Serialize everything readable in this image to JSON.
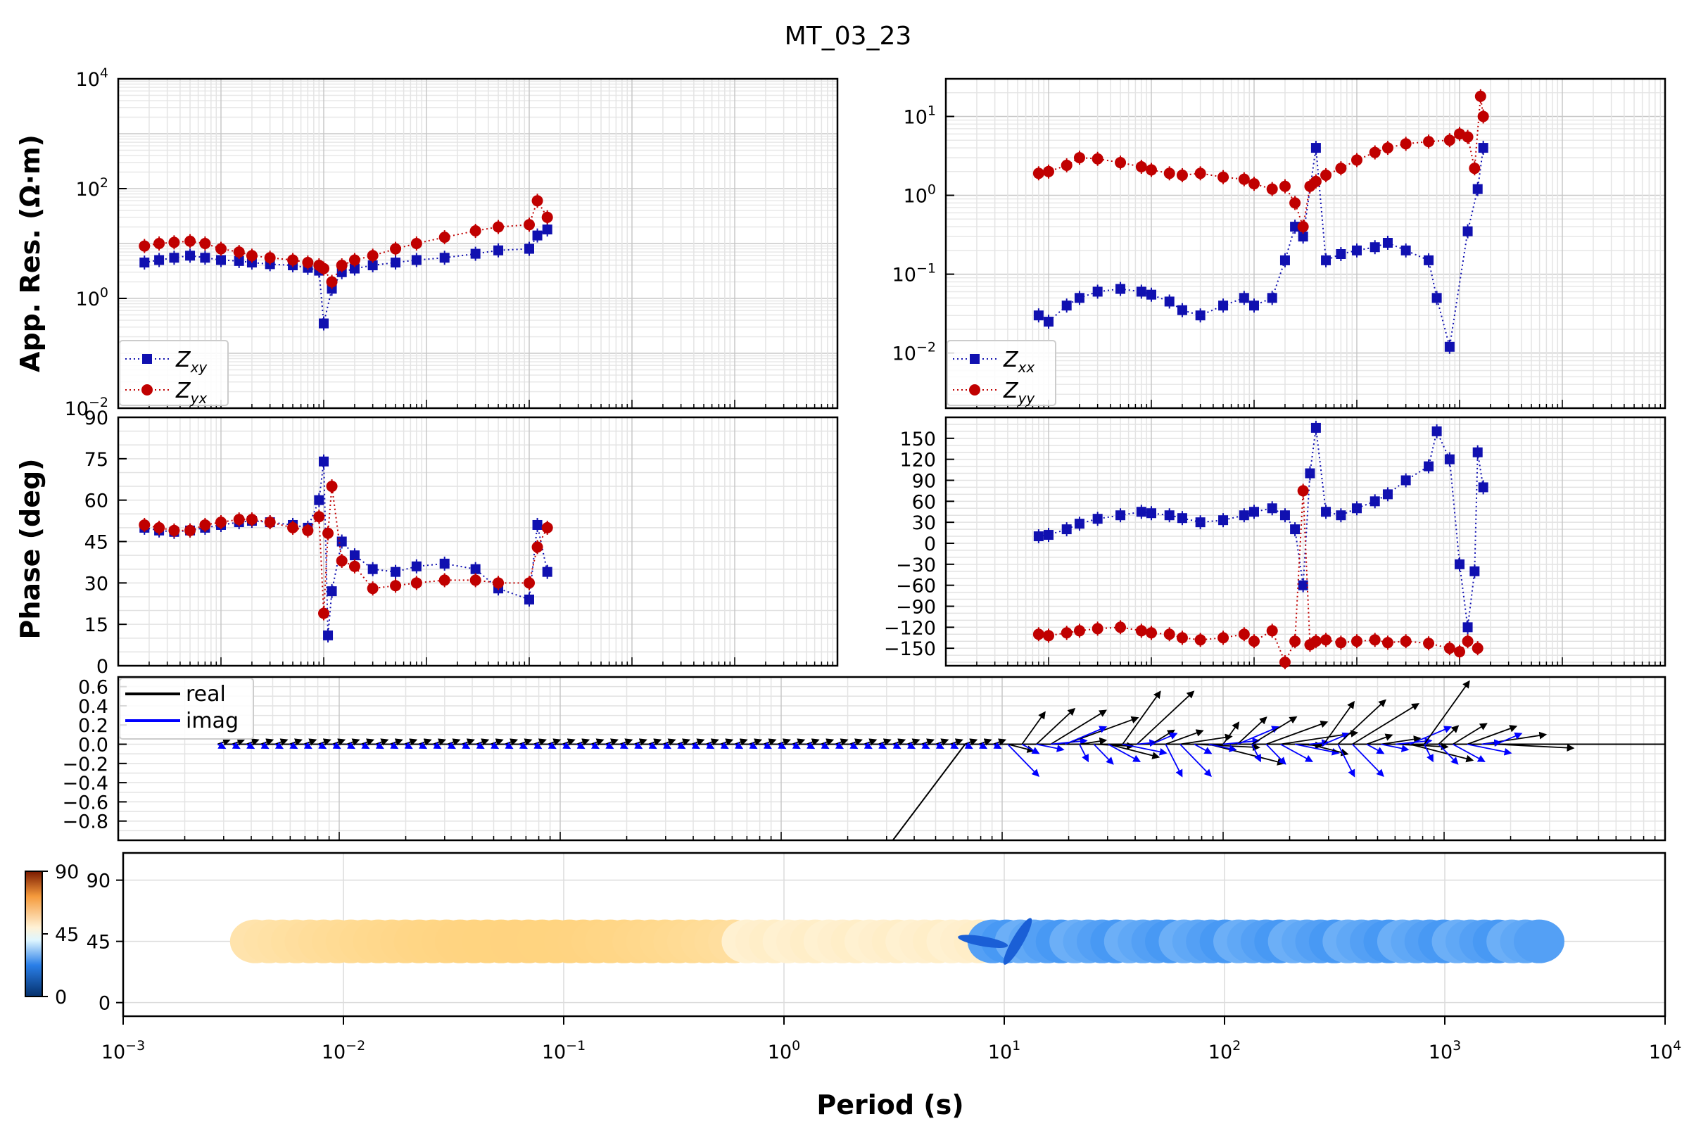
{
  "title": "MT_03_23",
  "colors": {
    "xy": "#1010b0",
    "yx": "#c00000",
    "tip_real": "#000000",
    "tip_imag": "#0000ff",
    "grid": "#d0d0d0"
  },
  "chart_data": {
    "type": "scatter",
    "xlabel": "Period (s)",
    "xscale": "log",
    "xlim": [
      0.001,
      10000
    ],
    "x_ticks": [
      "10",
      "10",
      "10",
      "10",
      "10",
      "10",
      "10",
      "10"
    ],
    "x_tick_exps": [
      "−3",
      "−2",
      "−1",
      "0",
      "1",
      "2",
      "3",
      "4"
    ],
    "ylabel_resistivity": "App. Res. (Ω·m)",
    "ylabel_phase": "Phase (deg)",
    "resistivity_main": {
      "ylim": [
        0.01,
        10000
      ],
      "yscale": "log",
      "y_ticks": [
        "10",
        "10",
        "10",
        "10"
      ],
      "y_tick_exps": [
        "−2",
        "0",
        "2",
        "4"
      ],
      "legend": [
        "Z",
        "Z"
      ],
      "legend_subs": [
        "xy",
        "yx"
      ],
      "series": [
        {
          "key": "xy",
          "points": [
            [
              0.0018,
              4.5
            ],
            [
              0.0025,
              5
            ],
            [
              0.0035,
              5.5
            ],
            [
              0.005,
              6
            ],
            [
              0.007,
              5.5
            ],
            [
              0.01,
              5
            ],
            [
              0.015,
              4.8
            ],
            [
              0.02,
              4.5
            ],
            [
              0.03,
              4.2
            ],
            [
              0.05,
              4
            ],
            [
              0.07,
              3.6
            ],
            [
              0.09,
              3.2
            ],
            [
              0.1,
              0.35
            ],
            [
              0.12,
              1.5
            ],
            [
              0.15,
              3
            ],
            [
              0.2,
              3.5
            ],
            [
              0.3,
              4
            ],
            [
              0.5,
              4.5
            ],
            [
              0.8,
              5
            ],
            [
              1.5,
              5.5
            ],
            [
              3,
              6.5
            ],
            [
              5,
              7.5
            ],
            [
              10,
              8
            ],
            [
              12,
              14
            ],
            [
              15,
              18
            ]
          ]
        },
        {
          "key": "yx",
          "points": [
            [
              0.0018,
              9
            ],
            [
              0.0025,
              10
            ],
            [
              0.0035,
              10.5
            ],
            [
              0.005,
              11
            ],
            [
              0.007,
              10
            ],
            [
              0.01,
              8
            ],
            [
              0.015,
              7
            ],
            [
              0.02,
              6
            ],
            [
              0.03,
              5.5
            ],
            [
              0.05,
              5
            ],
            [
              0.07,
              4.5
            ],
            [
              0.09,
              4
            ],
            [
              0.1,
              3.5
            ],
            [
              0.12,
              2
            ],
            [
              0.15,
              4
            ],
            [
              0.2,
              5
            ],
            [
              0.3,
              6
            ],
            [
              0.5,
              8
            ],
            [
              0.8,
              10
            ],
            [
              1.5,
              13
            ],
            [
              3,
              17
            ],
            [
              5,
              20
            ],
            [
              10,
              22
            ],
            [
              12,
              60
            ],
            [
              15,
              30
            ]
          ]
        }
      ]
    },
    "resistivity_diag": {
      "ylim": [
        0.002,
        30
      ],
      "yscale": "log",
      "y_ticks": [
        "10",
        "10",
        "10",
        "10"
      ],
      "y_tick_exps": [
        "1",
        "0",
        "−1",
        "−2"
      ],
      "legend": [
        "Z",
        "Z"
      ],
      "legend_subs": [
        "xx",
        "yy"
      ],
      "series": [
        {
          "key": "xx",
          "points": [
            [
              0.008,
              0.03
            ],
            [
              0.01,
              0.025
            ],
            [
              0.015,
              0.04
            ],
            [
              0.02,
              0.05
            ],
            [
              0.03,
              0.06
            ],
            [
              0.05,
              0.065
            ],
            [
              0.08,
              0.06
            ],
            [
              0.1,
              0.055
            ],
            [
              0.15,
              0.045
            ],
            [
              0.2,
              0.035
            ],
            [
              0.3,
              0.03
            ],
            [
              0.5,
              0.04
            ],
            [
              0.8,
              0.05
            ],
            [
              1,
              0.04
            ],
            [
              1.5,
              0.05
            ],
            [
              2,
              0.15
            ],
            [
              2.5,
              0.4
            ],
            [
              3,
              0.3
            ],
            [
              4,
              4
            ],
            [
              5,
              0.15
            ],
            [
              7,
              0.18
            ],
            [
              10,
              0.2
            ],
            [
              15,
              0.22
            ],
            [
              20,
              0.25
            ],
            [
              30,
              0.2
            ],
            [
              50,
              0.15
            ],
            [
              60,
              0.05
            ],
            [
              80,
              0.012
            ],
            [
              120,
              0.35
            ],
            [
              150,
              1.2
            ],
            [
              170,
              4
            ]
          ]
        },
        {
          "key": "yy",
          "points": [
            [
              0.008,
              1.9
            ],
            [
              0.01,
              2
            ],
            [
              0.015,
              2.4
            ],
            [
              0.02,
              3
            ],
            [
              0.03,
              2.9
            ],
            [
              0.05,
              2.6
            ],
            [
              0.08,
              2.3
            ],
            [
              0.1,
              2.1
            ],
            [
              0.15,
              1.9
            ],
            [
              0.2,
              1.8
            ],
            [
              0.3,
              1.9
            ],
            [
              0.5,
              1.7
            ],
            [
              0.8,
              1.6
            ],
            [
              1,
              1.4
            ],
            [
              1.5,
              1.2
            ],
            [
              2,
              1.3
            ],
            [
              2.5,
              0.8
            ],
            [
              3,
              0.4
            ],
            [
              3.5,
              1.3
            ],
            [
              4,
              1.5
            ],
            [
              5,
              1.8
            ],
            [
              7,
              2.2
            ],
            [
              10,
              2.8
            ],
            [
              15,
              3.5
            ],
            [
              20,
              4
            ],
            [
              30,
              4.5
            ],
            [
              50,
              4.8
            ],
            [
              80,
              5
            ],
            [
              100,
              6
            ],
            [
              120,
              5.5
            ],
            [
              140,
              2.2
            ],
            [
              160,
              18
            ],
            [
              170,
              10
            ]
          ]
        }
      ]
    },
    "phase_main": {
      "ylim": [
        0,
        90
      ],
      "y_ticks": [
        "0",
        "15",
        "30",
        "45",
        "60",
        "75",
        "90"
      ],
      "series": [
        {
          "key": "xy",
          "points": [
            [
              0.0018,
              50
            ],
            [
              0.0025,
              49
            ],
            [
              0.0035,
              48.5
            ],
            [
              0.005,
              49
            ],
            [
              0.007,
              50
            ],
            [
              0.01,
              51
            ],
            [
              0.015,
              52
            ],
            [
              0.02,
              52.5
            ],
            [
              0.03,
              52
            ],
            [
              0.05,
              51
            ],
            [
              0.07,
              50
            ],
            [
              0.09,
              60
            ],
            [
              0.1,
              74
            ],
            [
              0.11,
              11
            ],
            [
              0.12,
              27
            ],
            [
              0.15,
              45
            ],
            [
              0.2,
              40
            ],
            [
              0.3,
              35
            ],
            [
              0.5,
              34
            ],
            [
              0.8,
              36
            ],
            [
              1.5,
              37
            ],
            [
              3,
              35
            ],
            [
              5,
              28
            ],
            [
              10,
              24
            ],
            [
              12,
              51
            ],
            [
              15,
              34
            ]
          ]
        },
        {
          "key": "yx",
          "points": [
            [
              0.0018,
              51
            ],
            [
              0.0025,
              50
            ],
            [
              0.0035,
              49
            ],
            [
              0.005,
              49
            ],
            [
              0.007,
              51
            ],
            [
              0.01,
              52
            ],
            [
              0.015,
              53
            ],
            [
              0.02,
              53
            ],
            [
              0.03,
              52
            ],
            [
              0.05,
              50
            ],
            [
              0.07,
              49
            ],
            [
              0.09,
              54
            ],
            [
              0.1,
              19
            ],
            [
              0.11,
              48
            ],
            [
              0.12,
              65
            ],
            [
              0.15,
              38
            ],
            [
              0.2,
              36
            ],
            [
              0.3,
              28
            ],
            [
              0.5,
              29
            ],
            [
              0.8,
              30
            ],
            [
              1.5,
              31
            ],
            [
              3,
              31
            ],
            [
              5,
              30
            ],
            [
              10,
              30
            ],
            [
              12,
              43
            ],
            [
              15,
              50
            ]
          ]
        }
      ]
    },
    "phase_diag": {
      "ylim": [
        -175,
        180
      ],
      "y_ticks": [
        "150",
        "120",
        "90",
        "60",
        "30",
        "0",
        "−30",
        "−60",
        "−90",
        "−120",
        "−150"
      ],
      "series": [
        {
          "key": "xx",
          "points": [
            [
              0.008,
              10
            ],
            [
              0.01,
              12
            ],
            [
              0.015,
              20
            ],
            [
              0.02,
              28
            ],
            [
              0.03,
              35
            ],
            [
              0.05,
              40
            ],
            [
              0.08,
              45
            ],
            [
              0.1,
              43
            ],
            [
              0.15,
              40
            ],
            [
              0.2,
              36
            ],
            [
              0.3,
              30
            ],
            [
              0.5,
              33
            ],
            [
              0.8,
              40
            ],
            [
              1,
              45
            ],
            [
              1.5,
              50
            ],
            [
              2,
              40
            ],
            [
              2.5,
              20
            ],
            [
              3,
              -60
            ],
            [
              3.5,
              100
            ],
            [
              4,
              165
            ],
            [
              5,
              45
            ],
            [
              7,
              40
            ],
            [
              10,
              50
            ],
            [
              15,
              60
            ],
            [
              20,
              70
            ],
            [
              30,
              90
            ],
            [
              50,
              110
            ],
            [
              60,
              160
            ],
            [
              80,
              120
            ],
            [
              100,
              -30
            ],
            [
              120,
              -120
            ],
            [
              140,
              -40
            ],
            [
              150,
              130
            ],
            [
              170,
              80
            ]
          ]
        },
        {
          "key": "yy",
          "points": [
            [
              0.008,
              -130
            ],
            [
              0.01,
              -132
            ],
            [
              0.015,
              -128
            ],
            [
              0.02,
              -125
            ],
            [
              0.03,
              -122
            ],
            [
              0.05,
              -120
            ],
            [
              0.08,
              -125
            ],
            [
              0.1,
              -128
            ],
            [
              0.15,
              -130
            ],
            [
              0.2,
              -135
            ],
            [
              0.3,
              -138
            ],
            [
              0.5,
              -135
            ],
            [
              0.8,
              -130
            ],
            [
              1,
              -140
            ],
            [
              1.5,
              -125
            ],
            [
              2,
              -170
            ],
            [
              2.5,
              -140
            ],
            [
              3,
              75
            ],
            [
              3.5,
              -145
            ],
            [
              4,
              -140
            ],
            [
              5,
              -138
            ],
            [
              7,
              -142
            ],
            [
              10,
              -140
            ],
            [
              15,
              -138
            ],
            [
              20,
              -142
            ],
            [
              30,
              -140
            ],
            [
              50,
              -143
            ],
            [
              80,
              -150
            ],
            [
              100,
              -155
            ],
            [
              120,
              -140
            ],
            [
              150,
              -150
            ]
          ]
        }
      ]
    },
    "tipper": {
      "ylim": [
        -1.0,
        0.7
      ],
      "y_ticks": [
        "0.6",
        "0.4",
        "0.2",
        "0.0",
        "−0.2",
        "−0.4",
        "−0.6",
        "−0.8"
      ],
      "legend": [
        "real",
        "imag"
      ]
    },
    "phase_tensor": {
      "ylim": [
        -10,
        110
      ],
      "y_ticks": [
        "90",
        "45",
        "0"
      ],
      "colorbar_ticks": [
        "90",
        "45",
        "0"
      ],
      "colorbar_range": [
        0,
        90
      ]
    }
  }
}
